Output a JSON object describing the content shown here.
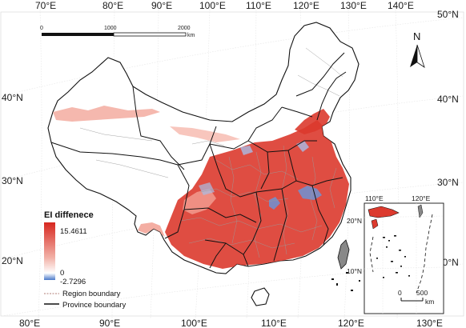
{
  "map": {
    "top_longitude_labels": [
      "70°E",
      "80°E",
      "90°E",
      "100°E",
      "110°E",
      "120°E",
      "130°E",
      "140°E"
    ],
    "bottom_longitude_labels": [
      "80°E",
      "90°E",
      "100°E",
      "110°E",
      "120°E",
      "130°E"
    ],
    "left_latitude_labels": [
      "40°N",
      "30°N",
      "20°N"
    ],
    "right_latitude_labels": [
      "50°N",
      "40°N",
      "30°N",
      "20°N"
    ],
    "scale_bar": {
      "ticks": [
        "0",
        "1000",
        "2000"
      ],
      "unit": "km"
    },
    "north_arrow": {
      "label": "N"
    },
    "legend": {
      "title": "EI diffenece",
      "max_label": "15.4611",
      "zero_label": "0",
      "min_label": "-2.7296",
      "gradient": {
        "high": "#d7271f",
        "mid": "#ffffff",
        "low": "#4a78c8"
      },
      "region_boundary_label": "Region boundary",
      "province_boundary_label": "Province boundary",
      "region_line_color": "#b07d75",
      "province_line_color": "#111111"
    },
    "inset": {
      "longitude_labels": [
        "110°E",
        "120°E"
      ],
      "latitude_labels": [
        "20°N",
        "10°N"
      ],
      "scale_bar": {
        "ticks": [
          "0",
          "500"
        ],
        "unit": "km"
      }
    },
    "colors": {
      "increase": "#dc3a2e",
      "increase_light": "#f2a093",
      "decrease": "#6f93d3"
    }
  }
}
